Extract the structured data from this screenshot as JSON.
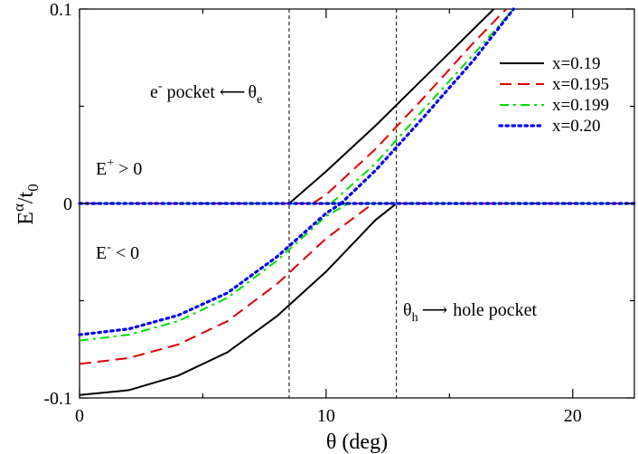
{
  "chart_data": {
    "type": "line",
    "title": "",
    "xlabel": "θ (deg)",
    "ylabel": {
      "base": "E",
      "sup": "α",
      "slash": "/t",
      "sub": "0"
    },
    "xlim": [
      0,
      22.5
    ],
    "ylim": [
      -0.1,
      0.1
    ],
    "xticks": [
      {
        "value": 0,
        "label": "0"
      },
      {
        "value": 10,
        "label": "10"
      },
      {
        "value": 20,
        "label": "20"
      }
    ],
    "yticks": [
      {
        "value": -0.1,
        "label": "-0.1"
      },
      {
        "value": 0,
        "label": "0"
      },
      {
        "value": 0.1,
        "label": "0.1"
      }
    ],
    "grid": false,
    "legend_position": "top-right",
    "series": [
      {
        "name": "x=0.19",
        "color": "#000000",
        "dash": "solid",
        "lower": [
          [
            0,
            -0.0985
          ],
          [
            2,
            -0.096
          ],
          [
            4,
            -0.0885
          ],
          [
            6,
            -0.0765
          ],
          [
            8,
            -0.058
          ],
          [
            10,
            -0.035
          ],
          [
            12,
            -0.0085
          ],
          [
            12.85,
            0
          ]
        ],
        "upper": [
          [
            8.5,
            0
          ],
          [
            10,
            0.0165
          ],
          [
            12,
            0.04
          ],
          [
            14,
            0.065
          ],
          [
            16,
            0.09
          ],
          [
            16.8,
            0.1
          ]
        ]
      },
      {
        "name": "x=0.195",
        "color": "#e00000",
        "dash": "dashed",
        "lower": [
          [
            0,
            -0.0825
          ],
          [
            2,
            -0.0795
          ],
          [
            4,
            -0.0725
          ],
          [
            6,
            -0.0605
          ],
          [
            8,
            -0.0415
          ],
          [
            10,
            -0.018
          ],
          [
            11.9,
            0
          ]
        ],
        "upper": [
          [
            9.45,
            0
          ],
          [
            10,
            0.0045
          ],
          [
            12,
            0.028
          ],
          [
            14,
            0.055
          ],
          [
            16,
            0.083
          ],
          [
            17.3,
            0.1
          ]
        ]
      },
      {
        "name": "x=0.199",
        "color": "#00dd00",
        "dash": "dashdot",
        "lower": [
          [
            0,
            -0.0705
          ],
          [
            2,
            -0.0675
          ],
          [
            4,
            -0.0605
          ],
          [
            6,
            -0.0485
          ],
          [
            8,
            -0.0295
          ],
          [
            10,
            -0.0065
          ],
          [
            10.9,
            0
          ]
        ],
        "upper": [
          [
            10.2,
            0
          ],
          [
            12,
            0.0205
          ],
          [
            14,
            0.049
          ],
          [
            16,
            0.077
          ],
          [
            17.6,
            0.1
          ]
        ]
      },
      {
        "name": "x=0.20",
        "color": "#0000ee",
        "dash": "dotted",
        "lower": [
          [
            0,
            -0.0675
          ],
          [
            2,
            -0.0645
          ],
          [
            4,
            -0.0575
          ],
          [
            6,
            -0.046
          ],
          [
            8,
            -0.0275
          ],
          [
            10,
            -0.005
          ],
          [
            10.6,
            0
          ]
        ],
        "upper": [
          [
            10.6,
            0
          ],
          [
            12,
            0.017
          ],
          [
            14,
            0.045
          ],
          [
            16,
            0.074
          ],
          [
            17.6,
            0.1
          ]
        ]
      }
    ],
    "annotations": {
      "electron_pocket": {
        "e": "e",
        "sup": "-",
        "pocket": " pocket ",
        "arrow": "⟵",
        "theta": "θ",
        "sub": "e"
      },
      "hole_pocket": {
        "theta": "θ",
        "sub": "h",
        "arrow": "⟶",
        "pocket": "hole pocket"
      },
      "e_plus": {
        "e": "E",
        "sup": "+",
        "rest": " > 0"
      },
      "e_minus": {
        "e": "E",
        "sup": "-",
        "rest": " < 0"
      }
    },
    "vlines": [
      {
        "name": "theta-e-line",
        "x": 8.5
      },
      {
        "name": "theta-h-line",
        "x": 12.85
      }
    ]
  }
}
